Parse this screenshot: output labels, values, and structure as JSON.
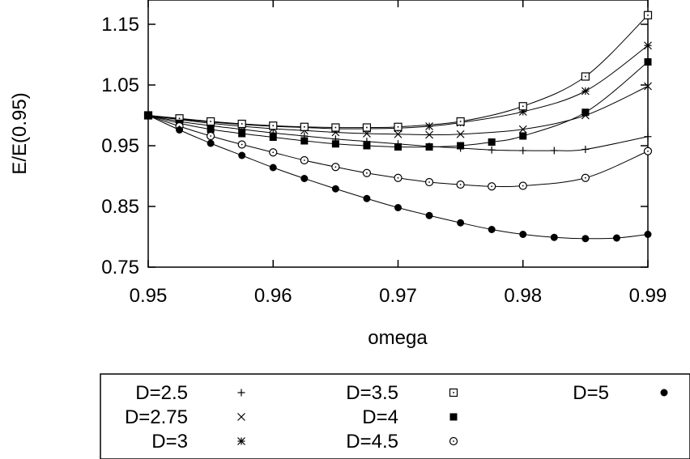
{
  "chart_data": {
    "type": "line",
    "title": "",
    "xlabel": "omega",
    "ylabel": "E/E(0.95)",
    "xlim": [
      0.95,
      0.99
    ],
    "ylim": [
      0.75,
      1.19
    ],
    "xticks": [
      0.95,
      0.96,
      0.97,
      0.98,
      0.99
    ],
    "xtick_labels": [
      "0.95",
      "0.96",
      "0.97",
      "0.98",
      "0.99"
    ],
    "yticks": [
      0.75,
      0.85,
      0.95,
      1.05,
      1.15
    ],
    "ytick_labels": [
      "0.75",
      "0.85",
      "0.95",
      "1.05",
      "1.15"
    ],
    "grid": false,
    "legend_position": "bottom",
    "series": [
      {
        "name": "D=2.5",
        "marker": "plus",
        "x": [
          0.95,
          0.9525,
          0.955,
          0.9575,
          0.96,
          0.9625,
          0.965,
          0.9675,
          0.97,
          0.9725,
          0.975,
          0.9775,
          0.98,
          0.9825,
          0.985,
          0.99
        ],
        "y": [
          1.0,
          0.99,
          0.983,
          0.977,
          0.971,
          0.966,
          0.961,
          0.957,
          0.953,
          0.949,
          0.946,
          0.943,
          0.942,
          0.942,
          0.944,
          0.965
        ]
      },
      {
        "name": "D=2.75",
        "marker": "cross",
        "x": [
          0.95,
          0.9525,
          0.955,
          0.9575,
          0.96,
          0.9625,
          0.965,
          0.9675,
          0.97,
          0.9725,
          0.975,
          0.98,
          0.985,
          0.99
        ],
        "y": [
          1.0,
          0.993,
          0.987,
          0.982,
          0.978,
          0.975,
          0.972,
          0.97,
          0.969,
          0.968,
          0.969,
          0.977,
          1.0,
          1.048
        ]
      },
      {
        "name": "D=3",
        "marker": "star",
        "x": [
          0.95,
          0.9525,
          0.955,
          0.9575,
          0.96,
          0.9625,
          0.965,
          0.9675,
          0.97,
          0.9725,
          0.975,
          0.98,
          0.985,
          0.99
        ],
        "y": [
          1.0,
          0.994,
          0.989,
          0.985,
          0.982,
          0.98,
          0.978,
          0.978,
          0.979,
          0.982,
          0.988,
          1.006,
          1.04,
          1.115
        ]
      },
      {
        "name": "D=3.5",
        "marker": "open-square",
        "x": [
          0.95,
          0.9525,
          0.955,
          0.9575,
          0.96,
          0.9625,
          0.965,
          0.9675,
          0.97,
          0.975,
          0.98,
          0.985,
          0.99
        ],
        "y": [
          1.0,
          0.995,
          0.99,
          0.986,
          0.983,
          0.981,
          0.98,
          0.98,
          0.981,
          0.99,
          1.015,
          1.064,
          1.165
        ]
      },
      {
        "name": "D=4",
        "marker": "filled-square",
        "x": [
          0.95,
          0.9525,
          0.955,
          0.9575,
          0.96,
          0.9625,
          0.965,
          0.9675,
          0.97,
          0.9725,
          0.975,
          0.9775,
          0.98,
          0.985,
          0.99
        ],
        "y": [
          1.0,
          0.987,
          0.977,
          0.97,
          0.964,
          0.958,
          0.953,
          0.95,
          0.948,
          0.948,
          0.95,
          0.956,
          0.966,
          1.005,
          1.088
        ]
      },
      {
        "name": "D=4.5",
        "marker": "open-circle",
        "x": [
          0.95,
          0.9525,
          0.955,
          0.9575,
          0.96,
          0.9625,
          0.965,
          0.9675,
          0.97,
          0.9725,
          0.975,
          0.9775,
          0.98,
          0.985,
          0.99
        ],
        "y": [
          1.0,
          0.982,
          0.966,
          0.952,
          0.939,
          0.926,
          0.915,
          0.905,
          0.897,
          0.89,
          0.886,
          0.883,
          0.884,
          0.897,
          0.941
        ]
      },
      {
        "name": "D=5",
        "marker": "filled-circle",
        "x": [
          0.95,
          0.9525,
          0.955,
          0.9575,
          0.96,
          0.9625,
          0.965,
          0.9675,
          0.97,
          0.9725,
          0.975,
          0.9775,
          0.98,
          0.9825,
          0.985,
          0.9875,
          0.99
        ],
        "y": [
          1.0,
          0.976,
          0.954,
          0.934,
          0.914,
          0.896,
          0.879,
          0.863,
          0.848,
          0.835,
          0.823,
          0.812,
          0.804,
          0.799,
          0.797,
          0.798,
          0.804
        ]
      }
    ]
  }
}
